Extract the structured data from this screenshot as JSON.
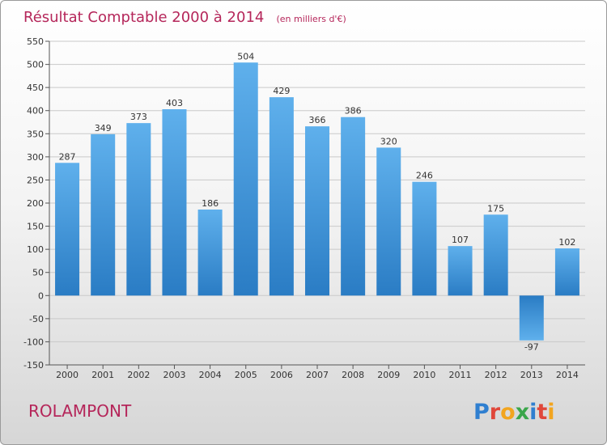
{
  "header": {
    "title": "Résultat Comptable 2000 à 2014",
    "unit": "(en milliers d'€)"
  },
  "footer": {
    "commune": "ROLAMPONT",
    "logo_letters": [
      "P",
      "r",
      "o",
      "x",
      "i",
      "t",
      "i"
    ],
    "logo_colors": [
      "#2f7fd0",
      "#e0473a",
      "#f2a51f",
      "#3aa64a",
      "#2f7fd0",
      "#e0473a",
      "#f2a51f"
    ]
  },
  "chart_data": {
    "type": "bar",
    "title": "Résultat Comptable 2000 à 2014",
    "categories": [
      "2000",
      "2001",
      "2002",
      "2003",
      "2004",
      "2005",
      "2006",
      "2007",
      "2008",
      "2009",
      "2010",
      "2011",
      "2012",
      "2013",
      "2014"
    ],
    "values": [
      287,
      349,
      373,
      403,
      186,
      504,
      429,
      366,
      386,
      320,
      246,
      107,
      175,
      -97,
      102
    ],
    "xlabel": "",
    "ylabel": "",
    "ylim": [
      -150,
      550
    ],
    "yticks": [
      -150,
      -100,
      -50,
      0,
      50,
      100,
      150,
      200,
      250,
      300,
      350,
      400,
      450,
      500,
      550
    ],
    "grid": true,
    "bar_color": "#3a8fd6"
  }
}
